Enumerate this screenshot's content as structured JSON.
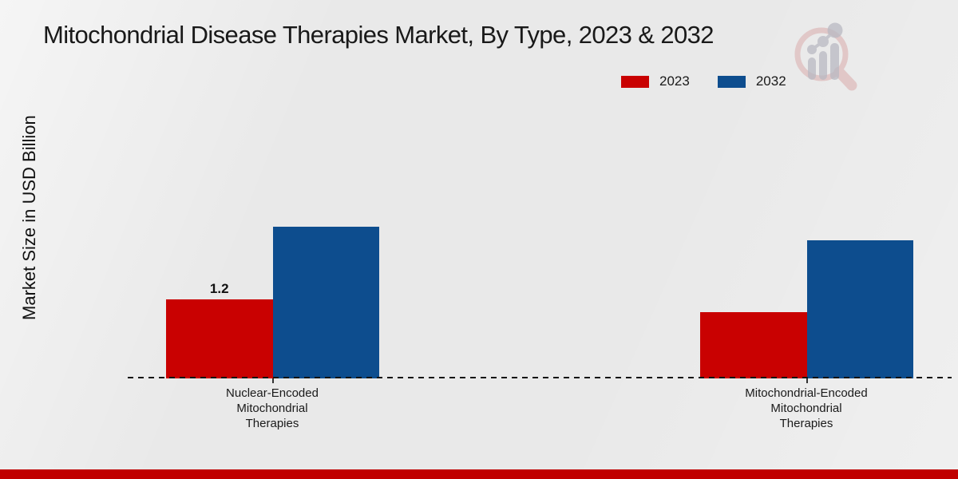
{
  "colors": {
    "red_2023": "#c90101",
    "blue_2032": "#0d4d8e",
    "footer_band": "#c00000",
    "background": "#e9e9e9",
    "text": "#1a1a1a"
  },
  "branding": {
    "watermark_icon": "magnifier-growth-chart-logo"
  },
  "legend": {
    "items": [
      {
        "label": "2023",
        "color": "#c90101"
      },
      {
        "label": "2032",
        "color": "#0d4d8e"
      }
    ]
  },
  "chart_data": {
    "type": "bar",
    "title": "Mitochondrial Disease Therapies Market, By Type, 2023 & 2032",
    "xlabel": "",
    "ylabel": "Market Size in USD Billion",
    "categories": [
      "Nuclear-Encoded\nMitochondrial\nTherapies",
      "Mitochondrial-Encoded\nMitochondrial\nTherapies"
    ],
    "series": [
      {
        "name": "2023",
        "color": "#c90101",
        "values": [
          1.2,
          1.0
        ],
        "labels": [
          "1.2",
          ""
        ]
      },
      {
        "name": "2032",
        "color": "#0d4d8e",
        "values": [
          2.3,
          2.1
        ],
        "labels": [
          "",
          ""
        ]
      }
    ],
    "ylim": [
      0,
      4.2
    ],
    "grid": false,
    "legend_position": "top-right",
    "baseline_style": "dashed",
    "y_axis_drawn": false
  }
}
